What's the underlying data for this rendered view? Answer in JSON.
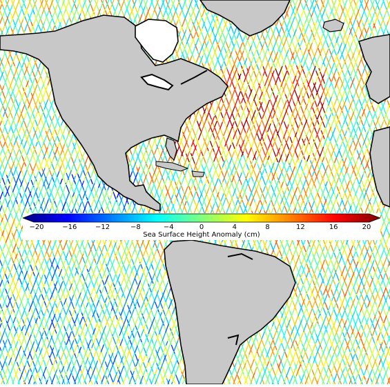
{
  "map": {
    "colorbar": {
      "title": "Sea Surface Height Anomaly (cm)",
      "min": -20,
      "max": 20,
      "ticks": [
        "−20",
        "−16",
        "−12",
        "−8",
        "−4",
        "0",
        "4",
        "8",
        "12",
        "16",
        "20"
      ],
      "colormap": "jet",
      "colors": [
        "#00007f",
        "#0000ff",
        "#007fff",
        "#00ffff",
        "#7fff7f",
        "#ffff00",
        "#ff7f00",
        "#ff0000",
        "#7f0000"
      ]
    },
    "colors": {
      "land": "#c8c8c8",
      "ocean_gap": "#ffffff",
      "coastline": "#000000"
    }
  }
}
